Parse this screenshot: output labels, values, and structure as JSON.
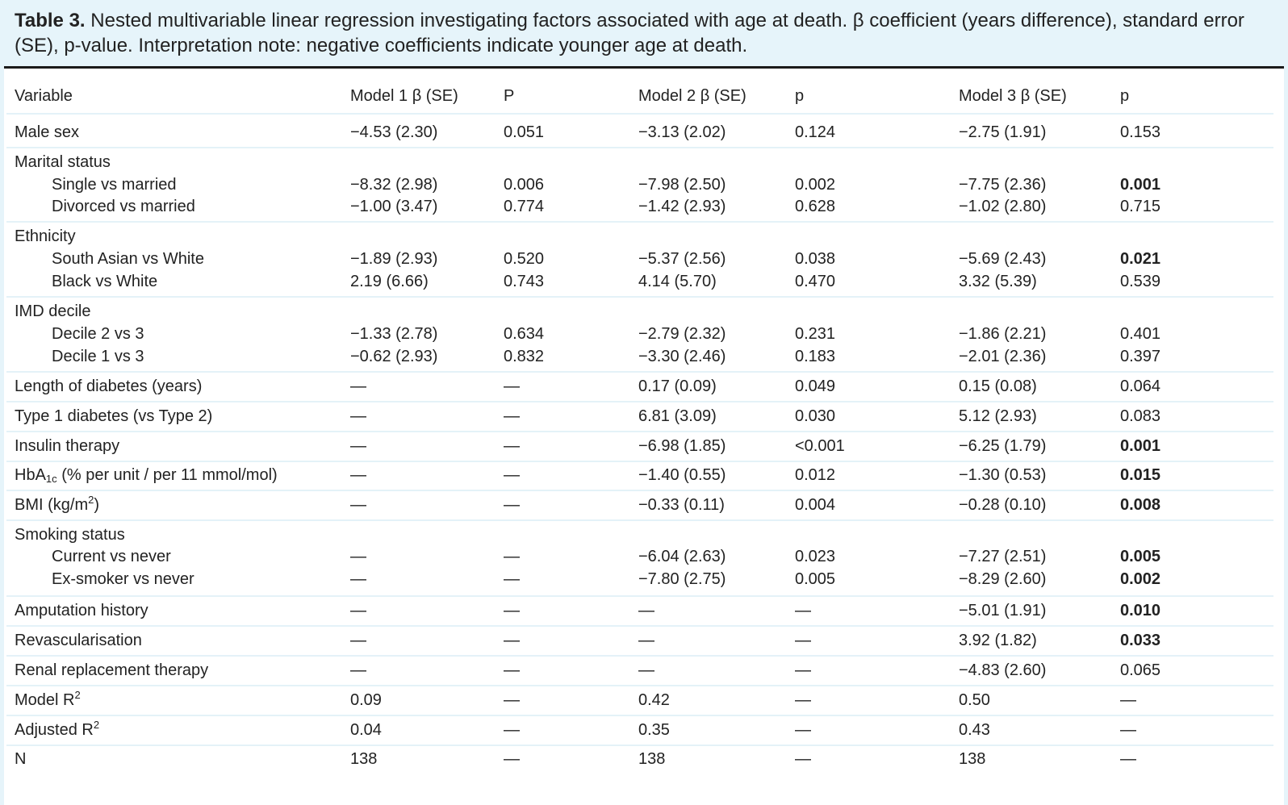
{
  "caption": {
    "label": "Table 3.",
    "text": "Nested multivariable linear regression investigating factors associated with age at death. β coefficient (years difference), standard error (SE), p-value. Interpretation note: negative coefficients indicate younger age at death."
  },
  "headers": [
    "Variable",
    "Model 1 β (SE)",
    "P",
    "Model 2 β (SE)",
    "p",
    "Model 3 β (SE)",
    "p"
  ],
  "rows": [
    {
      "label": "Male sex",
      "indent": false,
      "cells": [
        "−4.53 (2.30)",
        "0.051",
        "−3.13 (2.02)",
        "0.124",
        "−2.75 (1.91)",
        "0.153"
      ],
      "bold": false
    },
    {
      "label": "Marital status",
      "indent": false,
      "group": true
    },
    {
      "label": "Single vs married",
      "indent": true,
      "cells": [
        "−8.32 (2.98)",
        "0.006",
        "−7.98 (2.50)",
        "0.002",
        "−7.75 (2.36)",
        "0.001"
      ],
      "bold": true
    },
    {
      "label": "Divorced vs married",
      "indent": true,
      "cells": [
        "−1.00 (3.47)",
        "0.774",
        "−1.42 (2.93)",
        "0.628",
        "−1.02 (2.80)",
        "0.715"
      ],
      "bold": false
    },
    {
      "label": "Ethnicity",
      "indent": false,
      "group": true
    },
    {
      "label": "South Asian vs White",
      "indent": true,
      "cells": [
        "−1.89 (2.93)",
        "0.520",
        "−5.37 (2.56)",
        "0.038",
        "−5.69 (2.43)",
        "0.021"
      ],
      "bold": true
    },
    {
      "label": "Black vs White",
      "indent": true,
      "cells": [
        "2.19 (6.66)",
        "0.743",
        "4.14 (5.70)",
        "0.470",
        "3.32 (5.39)",
        "0.539"
      ],
      "bold": false
    },
    {
      "label": "IMD decile",
      "indent": false,
      "group": true
    },
    {
      "label": "Decile 2 vs 3",
      "indent": true,
      "cells": [
        "−1.33 (2.78)",
        "0.634",
        "−2.79 (2.32)",
        "0.231",
        "−1.86 (2.21)",
        "0.401"
      ],
      "bold": false
    },
    {
      "label": "Decile 1 vs 3",
      "indent": true,
      "cells": [
        "−0.62 (2.93)",
        "0.832",
        "−3.30 (2.46)",
        "0.183",
        "−2.01 (2.36)",
        "0.397"
      ],
      "bold": false
    },
    {
      "label": "Length of diabetes (years)",
      "indent": false,
      "cells": [
        "—",
        "—",
        "0.17 (0.09)",
        "0.049",
        "0.15 (0.08)",
        "0.064"
      ],
      "bold": false
    },
    {
      "label": "Type 1 diabetes (vs Type 2)",
      "indent": false,
      "cells": [
        "—",
        "—",
        "6.81 (3.09)",
        "0.030",
        "5.12 (2.93)",
        "0.083"
      ],
      "bold": false
    },
    {
      "label": "Insulin therapy",
      "indent": false,
      "cells": [
        "—",
        "—",
        "−6.98 (1.85)",
        "<0.001",
        "−6.25 (1.79)",
        "0.001"
      ],
      "bold": true
    },
    {
      "label": "HbA1c (% per unit / per 11 mmol/mol)",
      "label_html": "hba1c",
      "indent": false,
      "cells": [
        "—",
        "—",
        "−1.40 (0.55)",
        "0.012",
        "−1.30 (0.53)",
        "0.015"
      ],
      "bold": true
    },
    {
      "label": "BMI (kg/m2)",
      "label_html": "bmi",
      "indent": false,
      "cells": [
        "—",
        "—",
        "−0.33 (0.11)",
        "0.004",
        "−0.28 (0.10)",
        "0.008"
      ],
      "bold": true
    },
    {
      "label": "Smoking status",
      "indent": false,
      "group": true
    },
    {
      "label": "Current vs never",
      "indent": true,
      "cells": [
        "—",
        "—",
        "−6.04 (2.63)",
        "0.023",
        "−7.27 (2.51)",
        "0.005"
      ],
      "bold": true
    },
    {
      "label": "Ex-smoker vs never",
      "indent": true,
      "cells": [
        "—",
        "—",
        "−7.80 (2.75)",
        "0.005",
        "−8.29 (2.60)",
        "0.002"
      ],
      "bold": true
    },
    {
      "label": "Amputation history",
      "indent": false,
      "cells": [
        "—",
        "—",
        "—",
        "—",
        "−5.01 (1.91)",
        "0.010"
      ],
      "bold": true
    },
    {
      "label": "Revascularisation",
      "indent": false,
      "cells": [
        "—",
        "—",
        "—",
        "—",
        "3.92 (1.82)",
        "0.033"
      ],
      "bold": true
    },
    {
      "label": "Renal replacement therapy",
      "indent": false,
      "cells": [
        "—",
        "—",
        "—",
        "—",
        "−4.83 (2.60)",
        "0.065"
      ],
      "bold": false
    },
    {
      "label": "Model R2",
      "label_html": "r2",
      "indent": false,
      "cells": [
        "0.09",
        "—",
        "0.42",
        "—",
        "0.50",
        "—"
      ],
      "bold": false
    },
    {
      "label": "Adjusted R2",
      "label_html": "adjr2",
      "indent": false,
      "cells": [
        "0.04",
        "—",
        "0.35",
        "—",
        "0.43",
        "—"
      ],
      "bold": false
    },
    {
      "label": "N",
      "indent": false,
      "cells": [
        "138",
        "—",
        "138",
        "—",
        "138",
        "—"
      ],
      "bold": false
    }
  ]
}
